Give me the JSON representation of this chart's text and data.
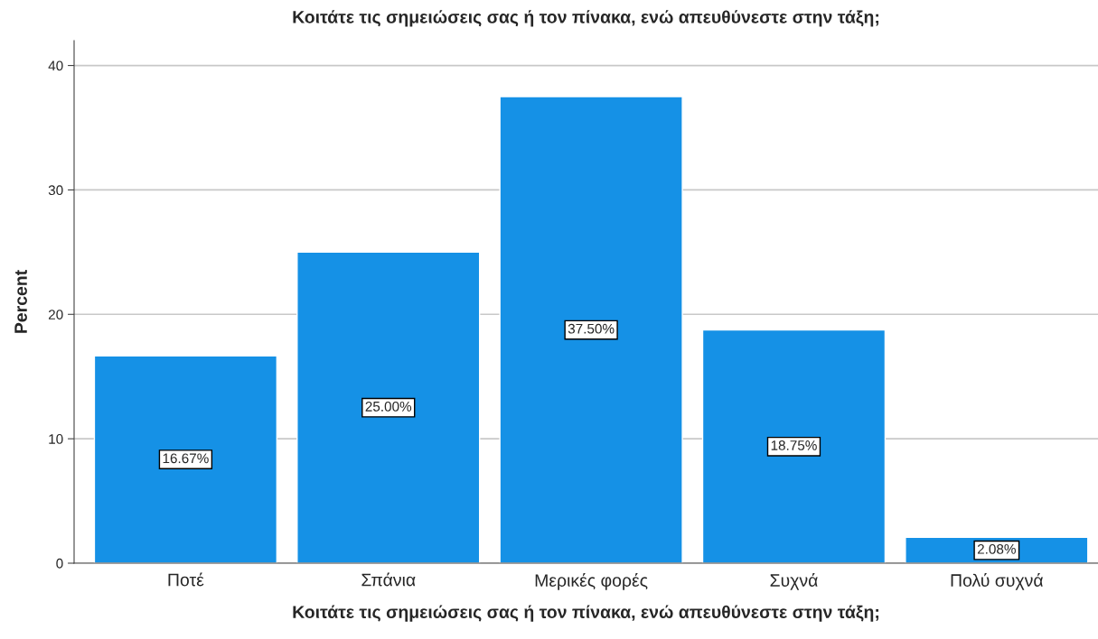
{
  "chart_data": {
    "type": "bar",
    "title": "Κοιτάτε τις σημειώσεις σας ή τον πίνακα, ενώ απευθύνεστε στην τάξη;",
    "xlabel": "Κοιτάτε τις σημειώσεις σας ή τον πίνακα, ενώ απευθύνεστε στην τάξη;",
    "ylabel": "Percent",
    "categories": [
      "Ποτέ",
      "Σπάνια",
      "Μερικές φορές",
      "Συχνά",
      "Πολύ συχνά"
    ],
    "values": [
      16.67,
      25.0,
      37.5,
      18.75,
      2.08
    ],
    "value_labels": [
      "16.67%",
      "25.00%",
      "37.50%",
      "18.75%",
      "2.08%"
    ],
    "color": "#1591e6",
    "ylim": [
      0,
      42
    ],
    "yticks": [
      0,
      10,
      20,
      30,
      40
    ],
    "grid": "y"
  }
}
